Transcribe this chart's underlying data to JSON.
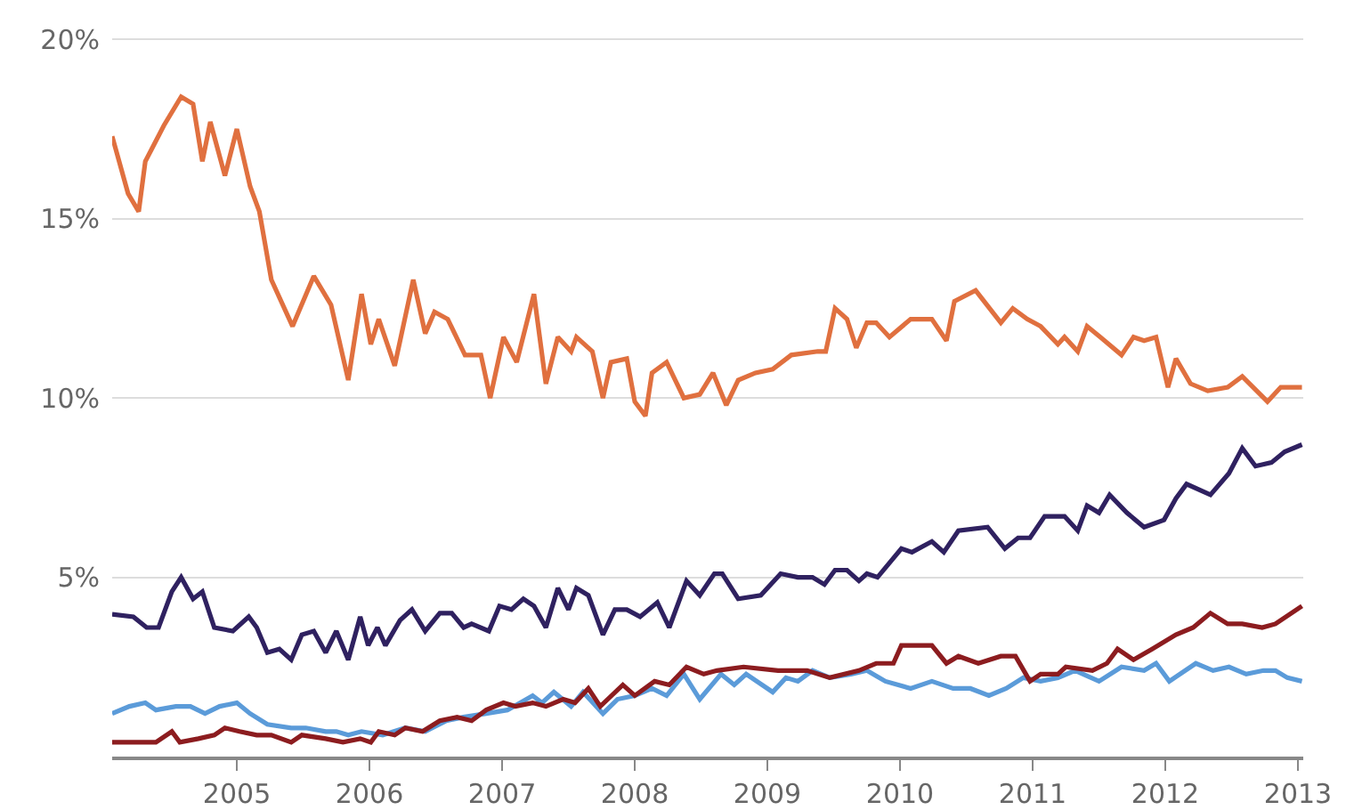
{
  "chart_data": {
    "type": "line",
    "xlim": [
      2004.06,
      2013.04
    ],
    "ylim": [
      0,
      21.1
    ],
    "xticks": [
      2005,
      2006,
      2007,
      2008,
      2009,
      2010,
      2011,
      2012,
      2013
    ],
    "yticks": [
      {
        "value": 5,
        "label": "5%"
      },
      {
        "value": 10,
        "label": "10%"
      },
      {
        "value": 15,
        "label": "15%"
      },
      {
        "value": 20,
        "label": "20%"
      }
    ],
    "grid": "y",
    "marker": "none",
    "line_style": "solid",
    "series": [
      {
        "color": "#e0703f",
        "x": [
          2004.06,
          2004.18,
          2004.26,
          2004.31,
          2004.45,
          2004.58,
          2004.67,
          2004.74,
          2004.8,
          2004.91,
          2005.0,
          2005.1,
          2005.17,
          2005.26,
          2005.42,
          2005.58,
          2005.71,
          2005.84,
          2005.94,
          2006.01,
          2006.07,
          2006.19,
          2006.33,
          2006.42,
          2006.49,
          2006.59,
          2006.72,
          2006.84,
          2006.91,
          2007.01,
          2007.11,
          2007.24,
          2007.33,
          2007.42,
          2007.52,
          2007.56,
          2007.68,
          2007.76,
          2007.82,
          2007.94,
          2008.0,
          2008.08,
          2008.13,
          2008.24,
          2008.37,
          2008.49,
          2008.59,
          2008.69,
          2008.78,
          2008.91,
          2009.04,
          2009.18,
          2009.38,
          2009.44,
          2009.51,
          2009.6,
          2009.67,
          2009.75,
          2009.82,
          2009.92,
          2010.08,
          2010.24,
          2010.35,
          2010.41,
          2010.57,
          2010.76,
          2010.85,
          2010.96,
          2011.06,
          2011.19,
          2011.24,
          2011.34,
          2011.41,
          2011.51,
          2011.67,
          2011.76,
          2011.84,
          2011.93,
          2012.02,
          2012.08,
          2012.19,
          2012.32,
          2012.47,
          2012.58,
          2012.77,
          2012.87,
          2013.03
        ],
        "values": [
          17.3,
          15.7,
          15.2,
          16.6,
          17.6,
          18.4,
          18.2,
          16.6,
          17.7,
          16.2,
          17.5,
          15.9,
          15.2,
          13.3,
          12.0,
          13.4,
          12.6,
          10.5,
          12.9,
          11.5,
          12.2,
          10.9,
          13.3,
          11.8,
          12.4,
          12.2,
          11.2,
          11.2,
          10.0,
          11.7,
          11.0,
          12.9,
          10.4,
          11.7,
          11.3,
          11.7,
          11.3,
          10.0,
          11.0,
          11.1,
          9.9,
          9.5,
          10.7,
          11.0,
          10.0,
          10.1,
          10.7,
          9.8,
          10.5,
          10.7,
          10.8,
          11.2,
          11.3,
          11.3,
          12.5,
          12.2,
          11.4,
          12.1,
          12.1,
          11.7,
          12.2,
          12.2,
          11.6,
          12.7,
          13.0,
          12.1,
          12.5,
          12.2,
          12.0,
          11.5,
          11.7,
          11.3,
          12.0,
          11.7,
          11.2,
          11.7,
          11.6,
          11.7,
          10.3,
          11.1,
          10.4,
          10.2,
          10.3,
          10.6,
          9.9,
          10.3,
          10.3
        ]
      },
      {
        "color": "#2f2160",
        "x": [
          2004.06,
          2004.22,
          2004.32,
          2004.41,
          2004.51,
          2004.58,
          2004.67,
          2004.74,
          2004.83,
          2004.97,
          2005.09,
          2005.15,
          2005.23,
          2005.32,
          2005.41,
          2005.49,
          2005.58,
          2005.67,
          2005.75,
          2005.84,
          2005.93,
          2005.99,
          2006.06,
          2006.12,
          2006.23,
          2006.32,
          2006.42,
          2006.53,
          2006.62,
          2006.71,
          2006.77,
          2006.9,
          2006.98,
          2007.07,
          2007.16,
          2007.24,
          2007.33,
          2007.42,
          2007.5,
          2007.56,
          2007.65,
          2007.76,
          2007.85,
          2007.94,
          2008.04,
          2008.17,
          2008.26,
          2008.39,
          2008.49,
          2008.6,
          2008.66,
          2008.78,
          2008.95,
          2009.1,
          2009.23,
          2009.34,
          2009.43,
          2009.51,
          2009.6,
          2009.69,
          2009.75,
          2009.83,
          2010.01,
          2010.09,
          2010.24,
          2010.33,
          2010.44,
          2010.66,
          2010.79,
          2010.89,
          2010.98,
          2011.09,
          2011.24,
          2011.34,
          2011.41,
          2011.5,
          2011.58,
          2011.71,
          2011.84,
          2011.99,
          2012.08,
          2012.16,
          2012.34,
          2012.48,
          2012.58,
          2012.68,
          2012.8,
          2012.9,
          2013.03
        ],
        "values": [
          3.97,
          3.9,
          3.6,
          3.6,
          4.6,
          5.0,
          4.4,
          4.6,
          3.6,
          3.5,
          3.9,
          3.6,
          2.9,
          3.0,
          2.7,
          3.4,
          3.5,
          2.9,
          3.5,
          2.7,
          3.9,
          3.1,
          3.6,
          3.1,
          3.8,
          4.1,
          3.5,
          4.0,
          4.0,
          3.6,
          3.7,
          3.5,
          4.2,
          4.1,
          4.4,
          4.2,
          3.6,
          4.7,
          4.1,
          4.7,
          4.5,
          3.4,
          4.1,
          4.1,
          3.9,
          4.3,
          3.6,
          4.9,
          4.5,
          5.1,
          5.1,
          4.4,
          4.5,
          5.1,
          5.0,
          5.0,
          4.8,
          5.2,
          5.2,
          4.9,
          5.1,
          5.0,
          5.8,
          5.7,
          6.0,
          5.7,
          6.3,
          6.4,
          5.8,
          6.1,
          6.1,
          6.7,
          6.7,
          6.3,
          7.0,
          6.8,
          7.3,
          6.8,
          6.4,
          6.6,
          7.2,
          7.6,
          7.3,
          7.9,
          8.6,
          8.1,
          8.2,
          8.5,
          8.7
        ]
      },
      {
        "color": "#5b9bd9",
        "x": [
          2004.06,
          2004.19,
          2004.31,
          2004.39,
          2004.54,
          2004.65,
          2004.76,
          2004.87,
          2005.0,
          2005.1,
          2005.23,
          2005.41,
          2005.52,
          2005.67,
          2005.75,
          2005.84,
          2005.94,
          2006.1,
          2006.27,
          2006.42,
          2006.58,
          2006.71,
          2006.88,
          2007.04,
          2007.23,
          2007.3,
          2007.39,
          2007.52,
          2007.61,
          2007.76,
          2007.87,
          2008.0,
          2008.13,
          2008.24,
          2008.37,
          2008.49,
          2008.65,
          2008.75,
          2008.84,
          2009.04,
          2009.14,
          2009.23,
          2009.34,
          2009.47,
          2009.63,
          2009.75,
          2009.89,
          2010.08,
          2010.24,
          2010.4,
          2010.53,
          2010.67,
          2010.8,
          2010.93,
          2011.06,
          2011.19,
          2011.32,
          2011.5,
          2011.67,
          2011.84,
          2011.93,
          2012.03,
          2012.23,
          2012.36,
          2012.48,
          2012.61,
          2012.74,
          2012.83,
          2012.92,
          2013.03
        ],
        "values": [
          1.2,
          1.4,
          1.5,
          1.3,
          1.4,
          1.4,
          1.2,
          1.4,
          1.5,
          1.2,
          0.9,
          0.8,
          0.8,
          0.7,
          0.7,
          0.6,
          0.7,
          0.6,
          0.8,
          0.7,
          1.0,
          1.1,
          1.2,
          1.3,
          1.7,
          1.5,
          1.8,
          1.4,
          1.8,
          1.2,
          1.6,
          1.7,
          1.9,
          1.7,
          2.3,
          1.6,
          2.3,
          2.0,
          2.3,
          1.8,
          2.2,
          2.1,
          2.4,
          2.2,
          2.3,
          2.4,
          2.1,
          1.9,
          2.1,
          1.9,
          1.9,
          1.7,
          1.9,
          2.2,
          2.1,
          2.2,
          2.4,
          2.1,
          2.5,
          2.4,
          2.6,
          2.1,
          2.6,
          2.4,
          2.5,
          2.3,
          2.4,
          2.4,
          2.2,
          2.1
        ]
      },
      {
        "color": "#8c1c1f",
        "x": [
          2004.06,
          2004.25,
          2004.39,
          2004.51,
          2004.57,
          2004.71,
          2004.83,
          2004.91,
          2005.02,
          2005.15,
          2005.26,
          2005.41,
          2005.49,
          2005.67,
          2005.8,
          2005.93,
          2006.01,
          2006.07,
          2006.19,
          2006.27,
          2006.4,
          2006.53,
          2006.66,
          2006.77,
          2006.88,
          2007.01,
          2007.1,
          2007.23,
          2007.33,
          2007.46,
          2007.55,
          2007.65,
          2007.74,
          2007.91,
          2008.0,
          2008.15,
          2008.26,
          2008.39,
          2008.52,
          2008.62,
          2008.82,
          2009.08,
          2009.3,
          2009.47,
          2009.69,
          2009.82,
          2009.95,
          2010.01,
          2010.24,
          2010.35,
          2010.44,
          2010.59,
          2010.76,
          2010.87,
          2010.98,
          2011.06,
          2011.19,
          2011.25,
          2011.45,
          2011.56,
          2011.64,
          2011.76,
          2011.9,
          2012.08,
          2012.21,
          2012.34,
          2012.47,
          2012.58,
          2012.73,
          2012.83,
          2013.03
        ],
        "values": [
          0.4,
          0.4,
          0.4,
          0.7,
          0.4,
          0.5,
          0.6,
          0.8,
          0.7,
          0.6,
          0.6,
          0.4,
          0.6,
          0.5,
          0.4,
          0.5,
          0.4,
          0.7,
          0.6,
          0.8,
          0.7,
          1.0,
          1.1,
          1.0,
          1.3,
          1.5,
          1.4,
          1.5,
          1.4,
          1.6,
          1.5,
          1.9,
          1.4,
          2.0,
          1.7,
          2.1,
          2.0,
          2.5,
          2.3,
          2.4,
          2.5,
          2.4,
          2.4,
          2.2,
          2.4,
          2.6,
          2.6,
          3.1,
          3.1,
          2.6,
          2.8,
          2.6,
          2.8,
          2.8,
          2.1,
          2.3,
          2.3,
          2.5,
          2.4,
          2.6,
          3.0,
          2.7,
          3.0,
          3.4,
          3.6,
          4.0,
          3.7,
          3.7,
          3.6,
          3.7,
          4.2
        ]
      }
    ]
  }
}
